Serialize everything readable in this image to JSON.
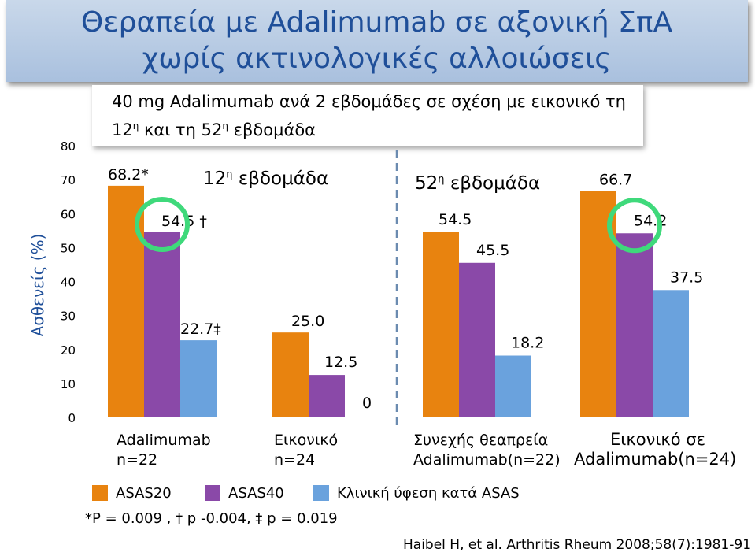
{
  "title_line1": "Θεραπεία  με Adalimumab σε αξονική ΣπΑ",
  "title_line2": "χωρίς ακτινολογικές αλλοιώσεις",
  "subtitle_line1": "40 mg Adalimumab  ανά 2 εβδομάδες σε σχέση με εικονικό τη",
  "subtitle_line2_a": "12",
  "subtitle_line2_sup1": "η",
  "subtitle_line2_b": " και τη 52",
  "subtitle_line2_sup2": "η",
  "subtitle_line2_c": " εβδομάδα",
  "week12_label_a": "12",
  "week12_label_sup": "η",
  "week12_label_b": " εβδομάδα",
  "week52_label_a": "52",
  "week52_label_sup": "η",
  "week52_label_b": " εβδομάδα",
  "footnote": "*P = 0.009 , † p -0.004,  ‡ p = 0.019",
  "citation": "Haibel H, et al. Arthritis Rheum 2008;58(7):1981-91",
  "colors": {
    "asas20": "#e8830f",
    "asas40": "#8a49a8",
    "remission": "#6aa2dd",
    "circle": "#3fd97b",
    "title_text": "#1f4f99"
  },
  "chart_data": {
    "type": "bar",
    "ylabel": "Ασθενείς (%)",
    "ylim": [
      0,
      80
    ],
    "yticks": [
      0,
      10,
      20,
      30,
      40,
      50,
      60,
      70,
      80
    ],
    "categories": [
      {
        "line1": "Adalimumab",
        "line2": "n=22"
      },
      {
        "line1": "Εικονικό",
        "line2": "n=24"
      },
      {
        "line1": "Συνεχής θεαπρεία",
        "line2": "Adalimumab(n=22)"
      },
      {
        "line1": "Εικονικό σε",
        "line2": "Adalimumab(n=24)"
      }
    ],
    "series": [
      {
        "name": "ASAS20",
        "values": [
          68.2,
          25.0,
          54.5,
          66.7
        ],
        "labels": [
          "68.2*",
          "25.0",
          "54.5",
          "66.7"
        ]
      },
      {
        "name": "ASAS40",
        "values": [
          54.5,
          12.5,
          45.5,
          54.2
        ],
        "labels": [
          "54.5 †",
          "12.5",
          "45.5",
          "54.2"
        ]
      },
      {
        "name": "Κλινική ύφεση κατά ASAS",
        "values": [
          22.7,
          0,
          18.2,
          37.5
        ],
        "labels": [
          "22.7‡",
          "0",
          "18.2",
          "37.5"
        ]
      }
    ],
    "annotations": [
      "12η εβδομάδα",
      "52η εβδομάδα"
    ],
    "highlighted": [
      "Adalimumab n=22 ASAS40",
      "Εικονικό σε Adalimumab ASAS40"
    ]
  }
}
